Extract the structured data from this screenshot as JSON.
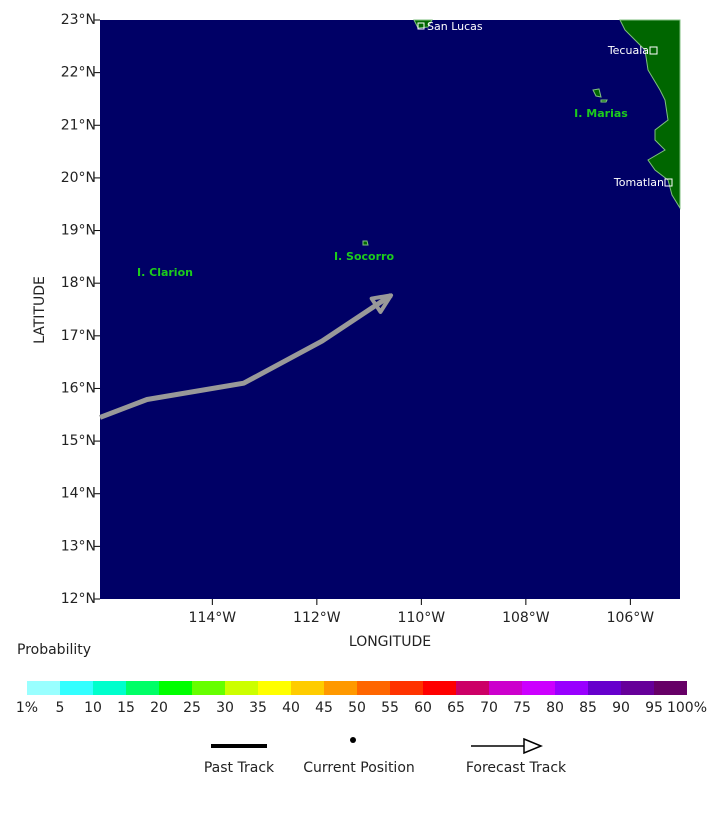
{
  "map": {
    "xlabel": "LONGITUDE",
    "ylabel": "LATITUDE",
    "xlim": [
      -116.15,
      -105.05
    ],
    "ylim": [
      12,
      23
    ],
    "xticks": [
      {
        "value": -114,
        "label": "114°W"
      },
      {
        "value": -112,
        "label": "112°W"
      },
      {
        "value": -110,
        "label": "110°W"
      },
      {
        "value": -108,
        "label": "108°W"
      },
      {
        "value": -106,
        "label": "106°W"
      }
    ],
    "yticks": [
      {
        "value": 12,
        "label": "12°N"
      },
      {
        "value": 13,
        "label": "13°N"
      },
      {
        "value": 14,
        "label": "14°N"
      },
      {
        "value": 15,
        "label": "15°N"
      },
      {
        "value": 16,
        "label": "16°N"
      },
      {
        "value": 17,
        "label": "17°N"
      },
      {
        "value": 18,
        "label": "18°N"
      },
      {
        "value": 19,
        "label": "19°N"
      },
      {
        "value": 20,
        "label": "20°N"
      },
      {
        "value": 21,
        "label": "21°N"
      },
      {
        "value": 22,
        "label": "22°N"
      },
      {
        "value": 23,
        "label": "23°N"
      }
    ],
    "places": [
      "San Lucas",
      "Tecuala",
      "I. Marias",
      "Tomatlan",
      "I. Socorro",
      "I. Clarion"
    ],
    "track": {
      "lon": [
        -116.15,
        -115.25,
        -113.4,
        -111.9,
        -110.58
      ],
      "lat": [
        15.45,
        15.79,
        16.1,
        16.9,
        17.77
      ],
      "color": "#999999"
    }
  },
  "colorbar": {
    "title": "Probability",
    "colors": [
      "#99ffff",
      "#33ffff",
      "#00ffcc",
      "#00ff66",
      "#00ff00",
      "#66ff00",
      "#ccff00",
      "#ffff00",
      "#ffcc00",
      "#ff9900",
      "#ff6600",
      "#ff3300",
      "#ff0000",
      "#cc0066",
      "#cc00cc",
      "#cc00ff",
      "#9900ff",
      "#6600cc",
      "#660099",
      "#660066"
    ],
    "labels": [
      {
        "value": 1,
        "label": "1%"
      },
      5,
      10,
      15,
      20,
      25,
      30,
      35,
      40,
      45,
      50,
      55,
      60,
      65,
      70,
      75,
      80,
      85,
      90,
      95,
      {
        "value": 100,
        "label": "100%"
      }
    ]
  },
  "legend": [
    "Past Track",
    "Current Position",
    "Forecast Track"
  ]
}
